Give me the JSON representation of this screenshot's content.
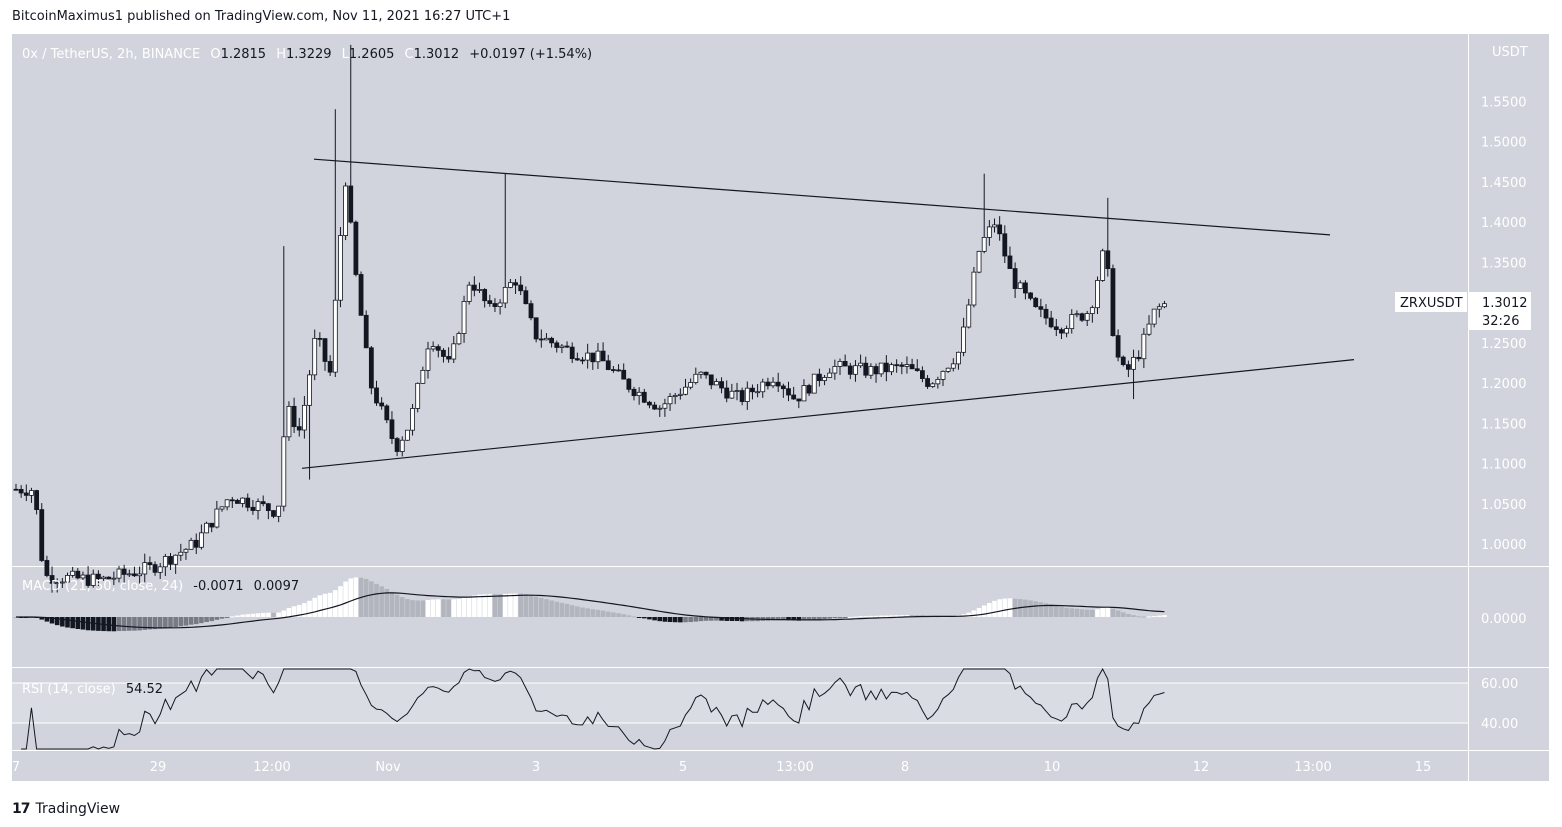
{
  "header": {
    "published": "BitcoinMaximus1 published on TradingView.com, Nov 11, 2021 16:27 UTC+1"
  },
  "footer": {
    "brand": "TradingView",
    "logo": "17"
  },
  "colors": {
    "bg": "#d1d4dc",
    "rsi_band": "#dadce3",
    "up_body": "#ffffff",
    "down_body": "#131722",
    "line": "#131722",
    "axis_text": "#ffffff"
  },
  "legend": {
    "main": {
      "symbol": "0x / TetherUS, 2h, BINANCE",
      "o_label": "O",
      "o": "1.2815",
      "h_label": "H",
      "h": "1.3229",
      "l_label": "L",
      "l": "1.2605",
      "c_label": "C",
      "c": "1.3012",
      "change": "+0.0197 (+1.54%)"
    },
    "macd": {
      "name": "MACD (21, 50, close, 24)",
      "v1": "-0.0071",
      "v2": "0.0097"
    },
    "rsi": {
      "name": "RSI (14, close)",
      "v": "54.52"
    }
  },
  "price_axis": {
    "unit": "USDT",
    "ticks": [
      "1.5500",
      "1.5000",
      "1.4500",
      "1.4000",
      "1.3500",
      "1.3000",
      "1.2500",
      "1.2000",
      "1.1500",
      "1.1000",
      "1.0500",
      "1.0000"
    ],
    "macd_ticks": [
      "0.0000"
    ],
    "rsi_ticks": [
      "60.00",
      "40.00"
    ]
  },
  "price_label": {
    "symbol": "ZRXUSDT",
    "price": "1.3012",
    "countdown": "32:26"
  },
  "time_axis": [
    "7",
    "29",
    "12:00",
    "Nov",
    "3",
    "5",
    "13:00",
    "8",
    "10",
    "12",
    "13:00",
    "15"
  ],
  "chart_data": {
    "type": "candlestick",
    "title": "0x / TetherUS, 2h, BINANCE",
    "ylim": [
      0.96,
      1.62
    ],
    "ohlc_key_points": [
      {
        "label": "start",
        "price": 1.07
      },
      {
        "label": "low",
        "price": 0.97
      },
      {
        "label": "breakout high",
        "price": 1.62
      },
      {
        "label": "Nov low",
        "price": 1.1
      },
      {
        "label": "retest high",
        "price": 1.46
      },
      {
        "label": "last",
        "open": 1.2815,
        "high": 1.3229,
        "low": 1.2605,
        "close": 1.3012
      }
    ],
    "trendlines": [
      {
        "name": "resistance",
        "from": 1.478,
        "to": 1.384
      },
      {
        "name": "support",
        "from": 1.094,
        "to": 1.229
      }
    ],
    "macd": {
      "params": "21, 50, close, 24",
      "macd": -0.0071,
      "signal": 0.0097
    },
    "rsi": {
      "params": "14, close",
      "value": 54.52,
      "band": [
        40,
        60
      ]
    }
  }
}
